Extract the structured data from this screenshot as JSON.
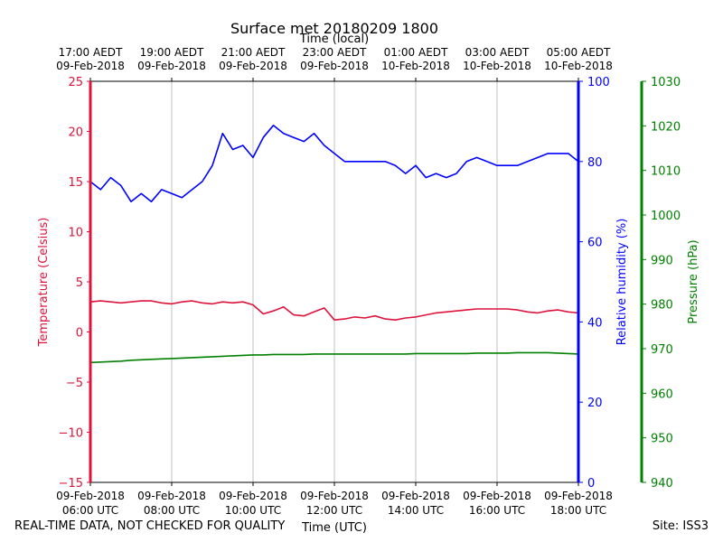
{
  "chart_data": {
    "type": "line",
    "title": "Surface met 20180209 1800",
    "top_axis_label": "Time (local)",
    "xlabel": "Time (UTC)",
    "x_hours_utc": [
      0,
      1,
      2,
      3,
      4,
      5,
      6,
      7,
      8,
      9,
      10,
      11,
      12,
      13,
      14,
      15,
      16,
      17,
      18,
      19,
      20,
      21,
      22,
      23,
      24,
      25,
      26,
      27,
      28,
      29,
      30,
      31,
      32,
      33,
      34,
      35,
      36,
      37,
      38,
      39,
      40,
      41,
      42,
      43,
      44,
      45,
      46,
      47,
      48
    ],
    "x_ticks_utc": [
      {
        "hours": 0,
        "date": "09-Feb-2018",
        "time": "06:00 UTC"
      },
      {
        "hours": 8,
        "date": "09-Feb-2018",
        "time": "08:00 UTC"
      },
      {
        "hours": 16,
        "date": "09-Feb-2018",
        "time": "10:00 UTC"
      },
      {
        "hours": 24,
        "date": "09-Feb-2018",
        "time": "12:00 UTC"
      },
      {
        "hours": 32,
        "date": "09-Feb-2018",
        "time": "14:00 UTC"
      },
      {
        "hours": 40,
        "date": "09-Feb-2018",
        "time": "16:00 UTC"
      },
      {
        "hours": 48,
        "date": "09-Feb-2018",
        "time": "18:00 UTC"
      }
    ],
    "x_ticks_local": [
      {
        "hours": 0,
        "time": "17:00 AEDT",
        "date": "09-Feb-2018"
      },
      {
        "hours": 8,
        "time": "19:00 AEDT",
        "date": "09-Feb-2018"
      },
      {
        "hours": 16,
        "time": "21:00 AEDT",
        "date": "09-Feb-2018"
      },
      {
        "hours": 24,
        "time": "23:00 AEDT",
        "date": "09-Feb-2018"
      },
      {
        "hours": 32,
        "time": "01:00 AEDT",
        "date": "10-Feb-2018"
      },
      {
        "hours": 40,
        "time": "03:00 AEDT",
        "date": "10-Feb-2018"
      },
      {
        "hours": 48,
        "time": "05:00 AEDT",
        "date": "10-Feb-2018"
      }
    ],
    "x_range": [
      0,
      48
    ],
    "series": [
      {
        "name": "Temperature",
        "axis_label": "Temperature (Celsius)",
        "color": "#dc143c",
        "axis_ticks": [
          25,
          20,
          15,
          10,
          5,
          0,
          -5,
          -10,
          -15
        ],
        "tick_labels": [
          "25",
          "20",
          "15",
          "10",
          "5",
          "0",
          "−5",
          "−10",
          "−15"
        ],
        "ylim": [
          -15,
          25
        ],
        "values": [
          3.0,
          3.1,
          3.0,
          2.9,
          3.0,
          3.1,
          3.1,
          2.9,
          2.8,
          3.0,
          3.1,
          2.9,
          2.8,
          3.0,
          2.9,
          3.0,
          2.7,
          1.8,
          2.1,
          2.5,
          1.7,
          1.6,
          2.0,
          2.4,
          1.2,
          1.3,
          1.5,
          1.4,
          1.6,
          1.3,
          1.2,
          1.4,
          1.5,
          1.7,
          1.9,
          2.0,
          2.1,
          2.2,
          2.3,
          2.3,
          2.3,
          2.3,
          2.2,
          2.0,
          1.9,
          2.1,
          2.2,
          2.0,
          1.9
        ]
      },
      {
        "name": "Relative humidity",
        "axis_label": "Relative humidity (%)",
        "color": "#0000ff",
        "axis_ticks": [
          100,
          80,
          60,
          40,
          20,
          0
        ],
        "tick_labels": [
          "100",
          "80",
          "60",
          "40",
          "20",
          "0"
        ],
        "ylim": [
          0,
          100
        ],
        "values": [
          75,
          73,
          76,
          74,
          70,
          72,
          70,
          73,
          72,
          71,
          73,
          75,
          79,
          87,
          83,
          84,
          81,
          86,
          89,
          87,
          86,
          85,
          87,
          84,
          82,
          80,
          80,
          80,
          80,
          80,
          79,
          77,
          79,
          76,
          77,
          76,
          77,
          80,
          81,
          80,
          79,
          79,
          79,
          80,
          81,
          82,
          82,
          82,
          80
        ]
      },
      {
        "name": "Pressure",
        "axis_label": "Pressure (hPa)",
        "color": "#008000",
        "axis_ticks": [
          1030,
          1020,
          1010,
          1000,
          990,
          980,
          970,
          960,
          950,
          940
        ],
        "tick_labels": [
          "1030",
          "1020",
          "1010",
          "1000",
          "990",
          "980",
          "970",
          "960",
          "950",
          "940"
        ],
        "ylim": [
          940,
          1030
        ],
        "values": [
          966.9,
          967.0,
          967.1,
          967.2,
          967.4,
          967.5,
          967.6,
          967.7,
          967.8,
          967.9,
          968.0,
          968.1,
          968.2,
          968.3,
          968.4,
          968.5,
          968.6,
          968.6,
          968.7,
          968.7,
          968.7,
          968.7,
          968.8,
          968.8,
          968.8,
          968.8,
          968.8,
          968.8,
          968.8,
          968.8,
          968.8,
          968.8,
          968.9,
          968.9,
          968.9,
          968.9,
          968.9,
          968.9,
          969.0,
          969.0,
          969.0,
          969.0,
          969.1,
          969.1,
          969.1,
          969.1,
          969.0,
          968.9,
          968.8
        ]
      }
    ],
    "grid": true
  },
  "footer": {
    "left_note": "REAL-TIME DATA, NOT CHECKED FOR QUALITY",
    "site": "Site: ISS3"
  }
}
